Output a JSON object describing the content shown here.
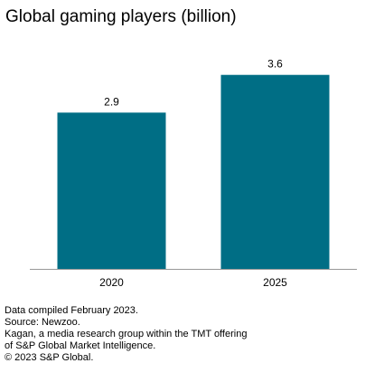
{
  "chart_data": {
    "type": "bar",
    "title": "Global gaming players (billion)",
    "categories": [
      "2020",
      "2025"
    ],
    "values": [
      2.9,
      3.6
    ],
    "data_labels": [
      "2.9",
      "3.6"
    ],
    "xlabel": "",
    "ylabel": "",
    "ylim": [
      0,
      4.2
    ],
    "grid": false,
    "legend": "none",
    "colors": {
      "bar": "#006e85",
      "axis": "#999999",
      "text": "#000000"
    }
  },
  "notes": [
    "Data compiled February 2023.",
    "Source: Newzoo.",
    "Kagan, a media research group within the TMT offering",
    "of S&P Global Market Intelligence.",
    "© 2023 S&P Global."
  ]
}
